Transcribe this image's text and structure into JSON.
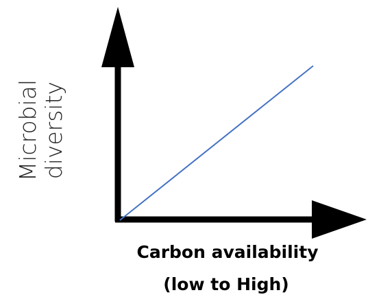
{
  "axes": {
    "y_label": [
      "Microbial",
      "diversity"
    ],
    "x_label": [
      "Carbon availability",
      "(low to High)"
    ]
  }
}
